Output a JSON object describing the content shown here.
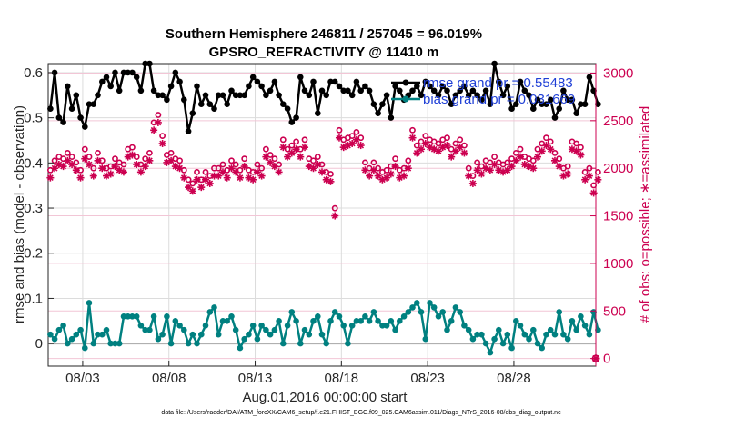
{
  "chart_data": {
    "type": "line",
    "title": "Southern Hemisphere 246811 / 257045 = 96.019%",
    "subtitle": "GPSRO_REFRACTIVITY @ 11410 m",
    "xlabel": "Aug.01,2016 00:00:00 start",
    "ylabel": "rmse and bias (model - observation)",
    "ylabel_right": "# of obs: o=possible; ∗=assimilated",
    "footnote": "data file: /Users/raeder/DAI/ATM_forcXX/CAM6_setup/f.e21.FHIST_BGC.f09_025.CAM6assim.011/Diags_NTrS_2016-08/obs_diag_output.nc",
    "x_range": [
      1.0,
      32.75
    ],
    "ylim": [
      -0.05,
      0.62
    ],
    "ylim_right": [
      -80,
      3100
    ],
    "xticks": [
      {
        "value": 3,
        "label": "08/03"
      },
      {
        "value": 8,
        "label": "08/08"
      },
      {
        "value": 13,
        "label": "08/13"
      },
      {
        "value": 18,
        "label": "08/18"
      },
      {
        "value": 23,
        "label": "08/23"
      },
      {
        "value": 28,
        "label": "08/28"
      }
    ],
    "yticks": [
      {
        "value": 0,
        "label": "0"
      },
      {
        "value": 0.1,
        "label": "0.1"
      },
      {
        "value": 0.2,
        "label": "0.2"
      },
      {
        "value": 0.3,
        "label": "0.3"
      },
      {
        "value": 0.4,
        "label": "0.4"
      },
      {
        "value": 0.5,
        "label": "0.5"
      },
      {
        "value": 0.6,
        "label": "0.6"
      }
    ],
    "yticks_right": [
      {
        "value": 0,
        "label": "0"
      },
      {
        "value": 500,
        "label": "500"
      },
      {
        "value": 1000,
        "label": "1000"
      },
      {
        "value": 1500,
        "label": "1500"
      },
      {
        "value": 2000,
        "label": "2000"
      },
      {
        "value": 2500,
        "label": "2500"
      },
      {
        "value": 3000,
        "label": "3000"
      }
    ],
    "x_start": 1.125,
    "x_step": 0.25,
    "series": [
      {
        "name": "rmse",
        "legend": "rmse grand pr = 0.55483",
        "color": "#000000",
        "axis": "left",
        "values": [
          0.52,
          0.6,
          0.5,
          0.49,
          0.57,
          0.52,
          0.55,
          0.5,
          0.48,
          0.53,
          0.53,
          0.55,
          0.58,
          0.59,
          0.57,
          0.6,
          0.56,
          0.6,
          0.6,
          0.6,
          0.59,
          0.56,
          0.62,
          0.62,
          0.56,
          0.55,
          0.55,
          0.54,
          0.57,
          0.6,
          0.58,
          0.54,
          0.47,
          0.51,
          0.57,
          0.53,
          0.55,
          0.53,
          0.52,
          0.55,
          0.55,
          0.53,
          0.56,
          0.55,
          0.55,
          0.55,
          0.57,
          0.59,
          0.58,
          0.57,
          0.55,
          0.56,
          0.58,
          0.55,
          0.53,
          0.52,
          0.49,
          0.5,
          0.59,
          0.56,
          0.55,
          0.58,
          0.51,
          0.56,
          0.55,
          0.58,
          0.58,
          0.57,
          0.56,
          0.56,
          0.55,
          0.58,
          0.56,
          0.57,
          0.56,
          0.53,
          0.51,
          0.53,
          0.55,
          0.5,
          0.57,
          0.56,
          0.54,
          0.55,
          0.56,
          0.57,
          0.55,
          0.58,
          0.57,
          0.56,
          0.55,
          0.57,
          0.56,
          0.53,
          0.55,
          0.56,
          0.57,
          0.55,
          0.56,
          0.55,
          0.54,
          0.56,
          0.53,
          0.62,
          0.58,
          0.55,
          0.57,
          0.52,
          0.53,
          0.58,
          0.56,
          0.55,
          0.52,
          0.54,
          0.53,
          0.53,
          0.54,
          0.5,
          0.52,
          0.56,
          0.54,
          0.54,
          0.51,
          0.53,
          0.53,
          0.59,
          0.56,
          0.53
        ],
        "marker": "filled-circle"
      },
      {
        "name": "bias",
        "legend": "bias grand pr = 0.031669",
        "color": "#008080",
        "axis": "left",
        "values": [
          0.02,
          0.01,
          0.03,
          0.04,
          0.0,
          0.01,
          0.02,
          0.03,
          -0.01,
          0.09,
          0.0,
          0.02,
          0.02,
          0.03,
          0.0,
          0.0,
          0.0,
          0.06,
          0.06,
          0.06,
          0.06,
          0.04,
          0.03,
          0.03,
          0.06,
          0.01,
          0.02,
          0.06,
          0.0,
          0.05,
          0.04,
          0.03,
          0.0,
          0.02,
          0.0,
          0.02,
          0.04,
          0.07,
          0.08,
          0.02,
          0.05,
          0.05,
          0.06,
          0.03,
          -0.01,
          0.01,
          0.02,
          0.04,
          0.01,
          0.04,
          0.03,
          0.02,
          0.03,
          0.05,
          0.0,
          0.04,
          0.07,
          0.05,
          0.0,
          0.03,
          0.02,
          0.05,
          0.06,
          0.02,
          0.0,
          0.05,
          0.07,
          0.06,
          0.04,
          0.0,
          0.04,
          0.05,
          0.05,
          0.06,
          0.05,
          0.07,
          0.05,
          0.04,
          0.04,
          0.05,
          0.03,
          0.05,
          0.06,
          0.07,
          0.08,
          0.09,
          0.07,
          0.01,
          0.09,
          0.08,
          0.06,
          0.07,
          0.03,
          0.05,
          0.08,
          0.07,
          0.04,
          0.03,
          0.01,
          0.02,
          0.02,
          0.0,
          -0.02,
          0.01,
          0.03,
          0.0,
          0.02,
          -0.01,
          0.05,
          0.04,
          0.02,
          0.01,
          0.03,
          0.0,
          -0.01,
          0.02,
          0.03,
          0.02,
          0.07,
          0.02,
          0.01,
          0.05,
          0.03,
          0.06,
          0.04,
          0.02,
          0.07,
          0.03
        ],
        "marker": "filled-circle"
      },
      {
        "name": "possible",
        "legend": "o=possible",
        "color": "#cc0050",
        "axis": "right",
        "values": [
          1980,
          2080,
          2120,
          2100,
          2160,
          2120,
          2060,
          1980,
          2200,
          2120,
          2000,
          2160,
          2080,
          2000,
          2020,
          2100,
          2060,
          2040,
          2200,
          2220,
          2120,
          2040,
          2100,
          2160,
          2480,
          2560,
          2340,
          2140,
          2160,
          2100,
          2080,
          1980,
          1880,
          1840,
          1960,
          1880,
          1960,
          1920,
          2000,
          2000,
          2040,
          1980,
          2080,
          2040,
          1980,
          2100,
          1980,
          1960,
          2040,
          2000,
          2200,
          2140,
          2100,
          2040,
          2300,
          2200,
          2240,
          2280,
          2200,
          2300,
          2100,
          2080,
          2120,
          2040,
          1960,
          1940,
          1580,
          2400,
          2300,
          2320,
          2340,
          2380,
          2320,
          2060,
          2000,
          2060,
          2000,
          1960,
          1980,
          2020,
          2100,
          1980,
          2000,
          2080,
          2400,
          2240,
          2280,
          2340,
          2300,
          2280,
          2260,
          2300,
          2320,
          2200,
          2260,
          2300,
          2240,
          2000,
          1920,
          2060,
          2020,
          2080,
          2060,
          2120,
          2060,
          2040,
          2060,
          2100,
          2160,
          2200,
          2120,
          2100,
          2080,
          2200,
          2260,
          2320,
          2280,
          2160,
          2100,
          2000,
          2020,
          2280,
          2260,
          2220,
          1960,
          2000,
          1820,
          1960
        ],
        "marker": "open-circle"
      },
      {
        "name": "assimilated",
        "legend": "∗=assimilated",
        "color": "#cc0050",
        "axis": "right",
        "values": [
          1900,
          2000,
          2040,
          2020,
          2080,
          2040,
          1980,
          1900,
          2100,
          2040,
          1920,
          2080,
          2000,
          1920,
          1940,
          2020,
          1980,
          1960,
          2120,
          2140,
          2040,
          1960,
          2020,
          2080,
          2400,
          2480,
          2260,
          2060,
          2080,
          2020,
          2000,
          1900,
          1800,
          1760,
          1880,
          1800,
          1880,
          1840,
          1920,
          1920,
          1960,
          1900,
          2000,
          1960,
          1900,
          2020,
          1900,
          1880,
          1960,
          1920,
          2120,
          2060,
          2020,
          1960,
          2220,
          2120,
          2160,
          2200,
          2120,
          2220,
          2020,
          2000,
          2040,
          1960,
          1880,
          1860,
          1500,
          2320,
          2220,
          2240,
          2260,
          2300,
          2240,
          1980,
          1920,
          1980,
          1920,
          1880,
          1900,
          1940,
          2020,
          1900,
          1920,
          2000,
          2320,
          2160,
          2200,
          2260,
          2220,
          2200,
          2180,
          2220,
          2240,
          2120,
          2180,
          2220,
          2160,
          1920,
          1840,
          1980,
          1940,
          2000,
          1980,
          2040,
          1980,
          1960,
          1980,
          2020,
          2080,
          2120,
          2040,
          2020,
          2000,
          2120,
          2180,
          2240,
          2200,
          2080,
          2020,
          1920,
          1940,
          2200,
          2180,
          2140,
          1880,
          1920,
          1740,
          1880
        ],
        "marker": "asterisk"
      }
    ],
    "legend_position": "top-right",
    "grid": true
  }
}
